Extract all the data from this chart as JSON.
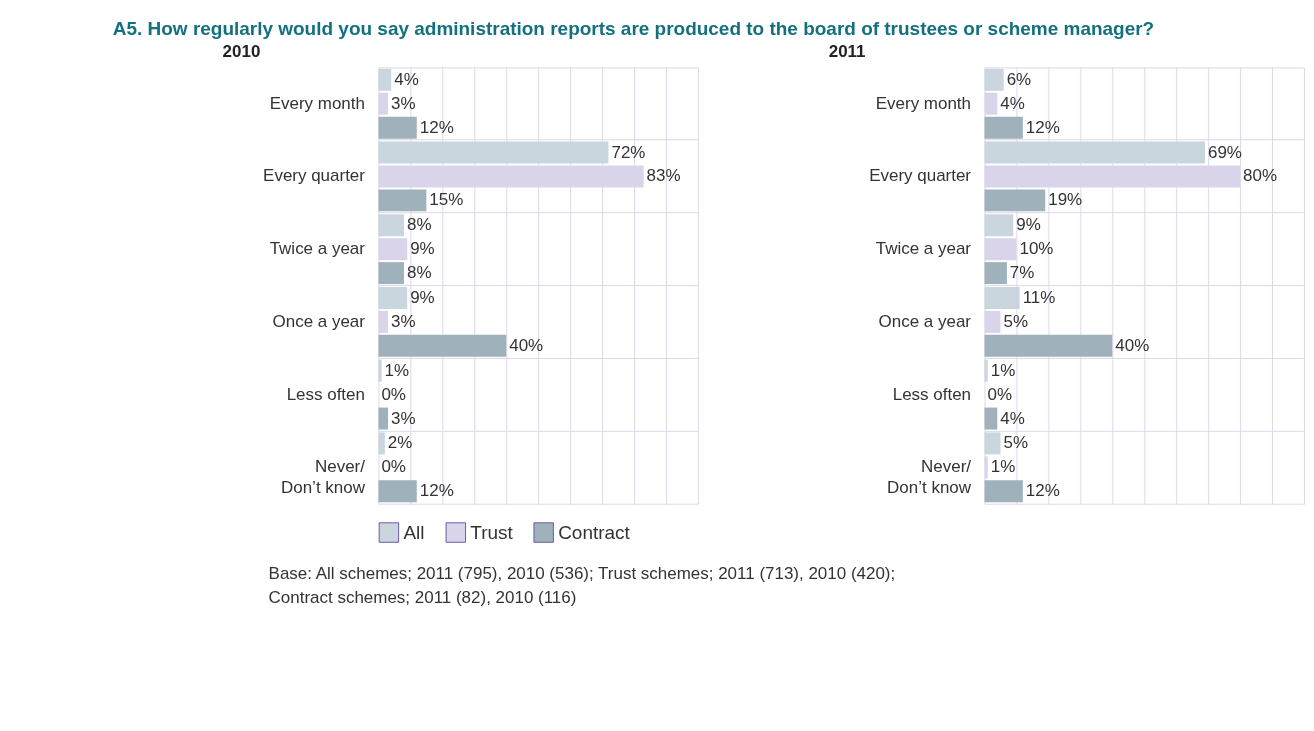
{
  "chart_data": [
    {
      "type": "bar",
      "orientation": "horizontal",
      "title": "A5. How regularly would you say administration reports are produced to the board of trustees or scheme manager?",
      "subtitle": "2010",
      "categories": [
        "Every month",
        "Every quarter",
        "Twice a year",
        "Once a year",
        "Less often",
        "Never/\nDon’t know"
      ],
      "xlim": [
        0,
        100
      ],
      "xticks": [
        0,
        10,
        20,
        30,
        40,
        50,
        60,
        70,
        80,
        90,
        100
      ],
      "tick_labels": "y",
      "grid": true,
      "legend": "bottom",
      "annotations": [
        "Base: All schemes; 2011 (795), 2010 (536); Trust schemes; 2011 (713), 2010 (420);\n        Contract schemes; 2011 (82), 2010 (116)"
      ],
      "series": [
        {
          "name": "All",
          "color": "#c9d6de",
          "values": [
            4,
            72,
            8,
            9,
            1,
            2
          ],
          "value_labels": [
            "4%",
            "72%",
            "8%",
            "9%",
            "1%",
            "2%"
          ]
        },
        {
          "name": "Trust",
          "color": "#d9d4ea",
          "values": [
            3,
            83,
            9,
            3,
            0,
            0
          ],
          "value_labels": [
            "3%",
            "83%",
            "9%",
            "3%",
            "0%",
            "0%"
          ]
        },
        {
          "name": "Contract",
          "color": "#9fb1bb",
          "values": [
            12,
            15,
            8,
            40,
            3,
            12
          ],
          "value_labels": [
            "12%",
            "15%",
            "8%",
            "40%",
            "3%",
            "12%"
          ]
        }
      ]
    },
    {
      "type": "bar",
      "orientation": "horizontal",
      "subtitle": "2011",
      "categories": [
        "Every month",
        "Every quarter",
        "Twice a year",
        "Once a year",
        "Less often",
        "Never/\nDon’t know"
      ],
      "xlim": [
        0,
        100
      ],
      "xticks": [
        0,
        10,
        20,
        30,
        40,
        50,
        60,
        70,
        80,
        90,
        100
      ],
      "tick_labels": "y",
      "grid": true,
      "series": [
        {
          "color": "#c9d6de",
          "values": [
            6,
            69,
            9,
            11,
            1,
            5
          ],
          "value_labels": [
            "6%",
            "69%",
            "9%",
            "11%",
            "1%",
            "5%"
          ]
        },
        {
          "color": "#d9d4ea",
          "values": [
            4,
            80,
            10,
            5,
            0,
            1
          ],
          "value_labels": [
            "4%",
            "80%",
            "10%",
            "5%",
            "0%",
            "1%"
          ]
        },
        {
          "color": "#9fb1bb",
          "values": [
            12,
            19,
            7,
            40,
            4,
            12
          ],
          "value_labels": [
            "12%",
            "19%",
            "7%",
            "40%",
            "4%",
            "12%"
          ]
        }
      ]
    }
  ]
}
